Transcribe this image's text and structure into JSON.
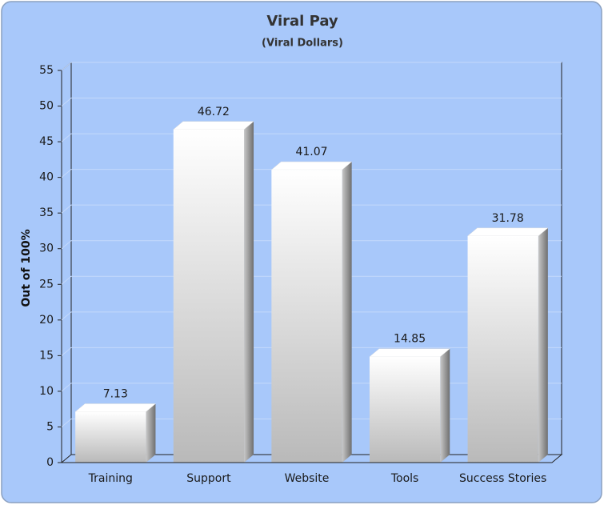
{
  "chart_data": {
    "type": "bar3d",
    "title": "Viral Pay",
    "subtitle": "(Viral Dollars)",
    "y_label": "Out of 100%",
    "categories": [
      "Training",
      "Support",
      "Website",
      "Tools",
      "Success Stories"
    ],
    "values": [
      7.13,
      46.72,
      41.07,
      14.85,
      31.78
    ],
    "color": "#ffffff",
    "ylim": [
      0,
      55
    ],
    "yticks": [
      0,
      5,
      10,
      15,
      20,
      25,
      30,
      35,
      40,
      45,
      50,
      55
    ],
    "grid": true
  }
}
